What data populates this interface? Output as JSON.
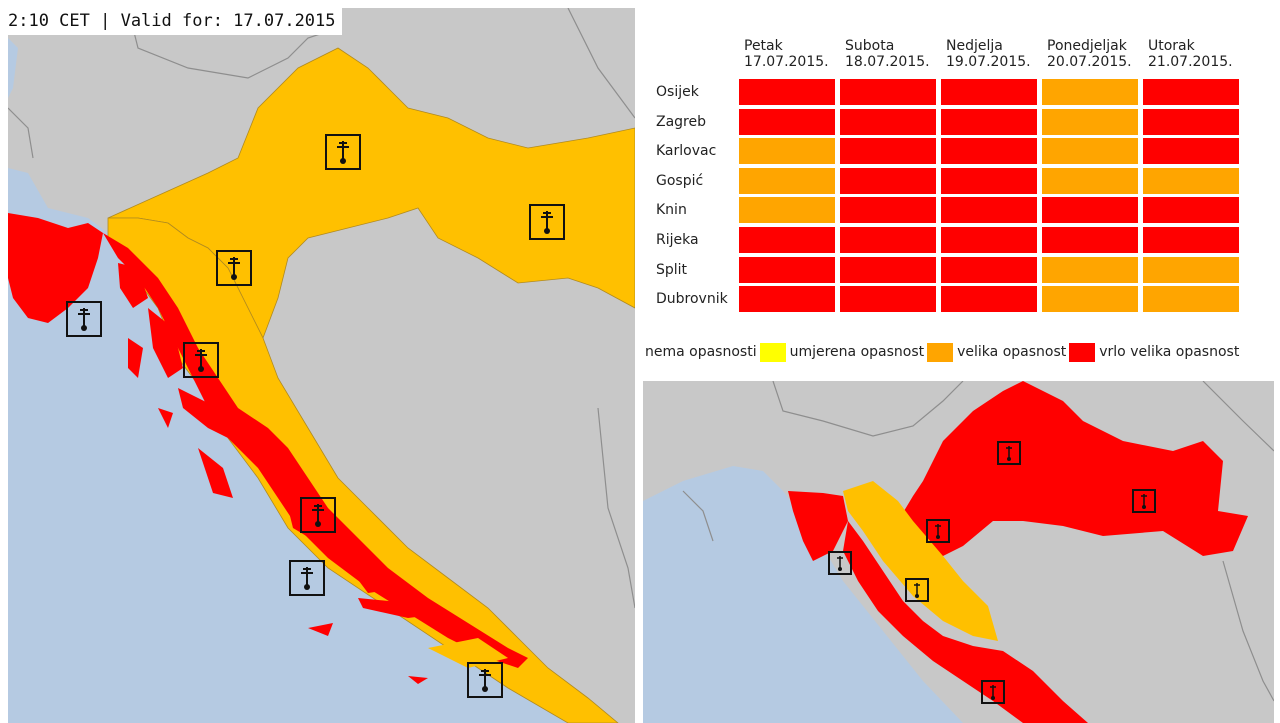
{
  "header": {
    "validity_text": "2:10 CET | Valid for: 17.07.2015"
  },
  "colors": {
    "sea": "#b5cae2",
    "land": "#c8c8c8",
    "border": "#8e8e8e",
    "none": "#ffff00",
    "moderate": "#ffc000",
    "great": "#ffa500",
    "very_great": "#ff0000",
    "cell_orange": "#ffa500",
    "cell_red": "#ff0000"
  },
  "table": {
    "days": [
      {
        "name": "Petak",
        "date": "17.07.2015."
      },
      {
        "name": "Subota",
        "date": "18.07.2015."
      },
      {
        "name": "Nedjelja",
        "date": "19.07.2015."
      },
      {
        "name": "Ponedjeljak",
        "date": "20.07.2015."
      },
      {
        "name": "Utorak",
        "date": "21.07.2015."
      }
    ],
    "rows": [
      {
        "city": "Osijek",
        "levels": [
          "red",
          "red",
          "red",
          "orange",
          "red"
        ]
      },
      {
        "city": "Zagreb",
        "levels": [
          "red",
          "red",
          "red",
          "orange",
          "red"
        ]
      },
      {
        "city": "Karlovac",
        "levels": [
          "orange",
          "red",
          "red",
          "orange",
          "red"
        ]
      },
      {
        "city": "Gospić",
        "levels": [
          "orange",
          "red",
          "red",
          "orange",
          "orange"
        ]
      },
      {
        "city": "Knin",
        "levels": [
          "orange",
          "red",
          "red",
          "red",
          "red"
        ]
      },
      {
        "city": "Rijeka",
        "levels": [
          "red",
          "red",
          "red",
          "red",
          "red"
        ]
      },
      {
        "city": "Split",
        "levels": [
          "red",
          "red",
          "red",
          "orange",
          "orange"
        ]
      },
      {
        "city": "Dubrovnik",
        "levels": [
          "red",
          "red",
          "red",
          "orange",
          "orange"
        ]
      }
    ]
  },
  "legend": {
    "items": [
      {
        "label": "nema opasnosti",
        "color": "#ffff00"
      },
      {
        "label": "umjerena opasnost",
        "color": "#ffa500"
      },
      {
        "label": "velika opasnost",
        "color": "#ff0000"
      },
      {
        "label": "vrlo velika opasnost",
        "color": ""
      }
    ]
  },
  "left_map": {
    "icons": [
      "thermometer-icon",
      "thermometer-icon",
      "thermometer-icon",
      "thermometer-icon",
      "thermometer-icon",
      "thermometer-icon",
      "thermometer-icon",
      "thermometer-icon",
      "thermometer-icon"
    ]
  },
  "right_map": {
    "icons": [
      "thermometer-icon",
      "thermometer-icon",
      "thermometer-icon",
      "thermometer-icon",
      "thermometer-icon",
      "thermometer-icon"
    ]
  }
}
